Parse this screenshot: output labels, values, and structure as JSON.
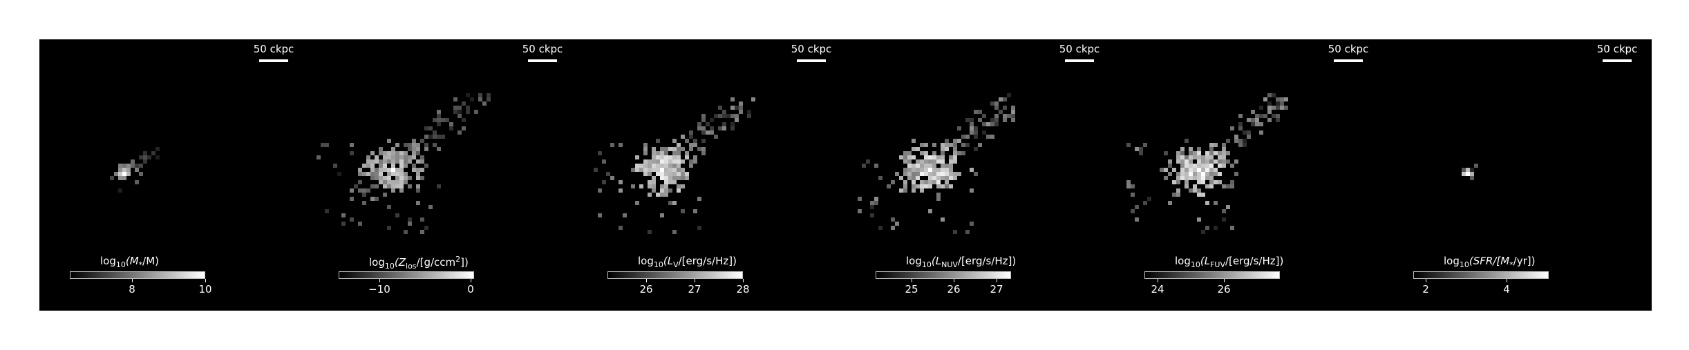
{
  "panels": [
    {
      "id": "stellar-mass",
      "scalebar": "50 ckpc",
      "colorbar": {
        "prefix": "log",
        "sub": "10",
        "quantity": "(M",
        "quantity_sub": "*",
        "unit": "/M",
        "unit_sub": "⊙",
        "suffix": ")",
        "ticks": [
          "8",
          "10"
        ],
        "tick_values": [
          8,
          10
        ],
        "range": [
          6.3,
          10.0
        ]
      },
      "image": {
        "center": [
          0.32,
          0.49
        ],
        "extent": [
          0.12,
          0.09
        ],
        "scatter_points": 40,
        "seed": 11,
        "brightness": 0.55
      }
    },
    {
      "id": "metallicity",
      "scalebar": "50 ckpc",
      "colorbar": {
        "prefix": "log",
        "sub": "10",
        "quantity": "(Z",
        "quantity_sub": "los",
        "unit": "/[g/ccm",
        "unit_sup": "2",
        "suffix": "])",
        "ticks": [
          "−10",
          "0"
        ],
        "tick_values": [
          -10,
          0
        ],
        "range": [
          -14.5,
          0.4
        ]
      },
      "image": {
        "center": [
          0.31,
          0.48
        ],
        "extent": [
          0.32,
          0.28
        ],
        "scatter_points": 330,
        "seed": 23,
        "brightness": 0.6
      }
    },
    {
      "id": "v-luminosity",
      "scalebar": "50 ckpc",
      "colorbar": {
        "prefix": "log",
        "sub": "10",
        "quantity": "(L",
        "quantity_sub": "V",
        "unit": "/[erg/s/Hz]",
        "suffix": ")",
        "ticks": [
          "26",
          "27",
          "28"
        ],
        "tick_values": [
          26,
          27,
          28
        ],
        "range": [
          25.2,
          28.0
        ]
      },
      "image": {
        "center": [
          0.31,
          0.48
        ],
        "extent": [
          0.32,
          0.28
        ],
        "scatter_points": 280,
        "seed": 37,
        "brightness": 0.75
      }
    },
    {
      "id": "nuv-luminosity",
      "scalebar": "50 ckpc",
      "colorbar": {
        "prefix": "log",
        "sub": "10",
        "quantity": "(L",
        "quantity_sub": "NUV",
        "unit": "/[erg/s/Hz]",
        "suffix": ")",
        "ticks": [
          "25",
          "26",
          "27"
        ],
        "tick_values": [
          25,
          26,
          27
        ],
        "range": [
          24.15,
          27.35
        ]
      },
      "image": {
        "center": [
          0.31,
          0.48
        ],
        "extent": [
          0.32,
          0.28
        ],
        "scatter_points": 300,
        "seed": 51,
        "brightness": 0.78
      }
    },
    {
      "id": "fuv-luminosity",
      "scalebar": "50 ckpc",
      "colorbar": {
        "prefix": "log",
        "sub": "10",
        "quantity": "(L",
        "quantity_sub": "FUV",
        "unit": "/[erg/s/Hz]",
        "suffix": ")",
        "ticks": [
          "24",
          "26"
        ],
        "tick_values": [
          24,
          26
        ],
        "range": [
          23.6,
          27.7
        ]
      },
      "image": {
        "center": [
          0.31,
          0.48
        ],
        "extent": [
          0.32,
          0.28
        ],
        "scatter_points": 300,
        "seed": 67,
        "brightness": 0.78
      }
    },
    {
      "id": "sfr",
      "scalebar": "50 ckpc",
      "colorbar": {
        "prefix": "log",
        "sub": "10",
        "quantity": "(SFR/[M",
        "quantity_sub": "*",
        "unit": "/yr])",
        "suffix": "",
        "ticks": [
          "2",
          "4"
        ],
        "tick_values": [
          2,
          4
        ],
        "range": [
          1.7,
          5.05
        ]
      },
      "image": {
        "center": [
          0.31,
          0.49
        ],
        "extent": [
          0.04,
          0.04
        ],
        "scatter_points": 16,
        "seed": 83,
        "brightness": 0.5
      }
    }
  ]
}
